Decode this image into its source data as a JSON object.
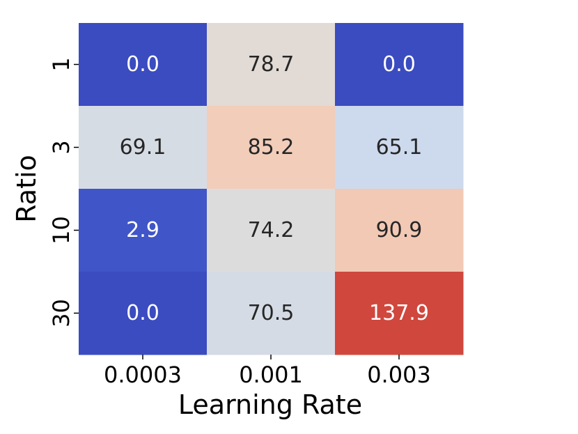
{
  "chart_data": {
    "type": "heatmap",
    "xlabel": "Learning Rate",
    "ylabel": "Ratio",
    "x_categories": [
      "0.0003",
      "0.001",
      "0.003"
    ],
    "y_categories": [
      "1",
      "3",
      "10",
      "30"
    ],
    "values": [
      [
        0.0,
        78.7,
        0.0
      ],
      [
        69.1,
        85.2,
        65.1
      ],
      [
        2.9,
        74.2,
        90.9
      ],
      [
        0.0,
        70.5,
        137.9
      ]
    ],
    "value_labels": [
      [
        "0.0",
        "78.7",
        "0.0"
      ],
      [
        "69.1",
        "85.2",
        "65.1"
      ],
      [
        "2.9",
        "74.2",
        "90.9"
      ],
      [
        "0.0",
        "70.5",
        "137.9"
      ]
    ],
    "colormap": "coolwarm",
    "colorbar": false,
    "cell_colors": [
      [
        "#3b4cc0",
        "#e2dad5",
        "#3b4cc0"
      ],
      [
        "#d6dce4",
        "#f1cdba",
        "#cdd9ec"
      ],
      [
        "#4055c8",
        "#dddcdc",
        "#f2c9b4"
      ],
      [
        "#3b4cc0",
        "#d5dbe5",
        "#d0473d"
      ]
    ],
    "text_colors": [
      [
        "#ffffff",
        "#262626",
        "#ffffff"
      ],
      [
        "#262626",
        "#262626",
        "#262626"
      ],
      [
        "#ffffff",
        "#262626",
        "#262626"
      ],
      [
        "#ffffff",
        "#262626",
        "#ffffff"
      ]
    ]
  }
}
